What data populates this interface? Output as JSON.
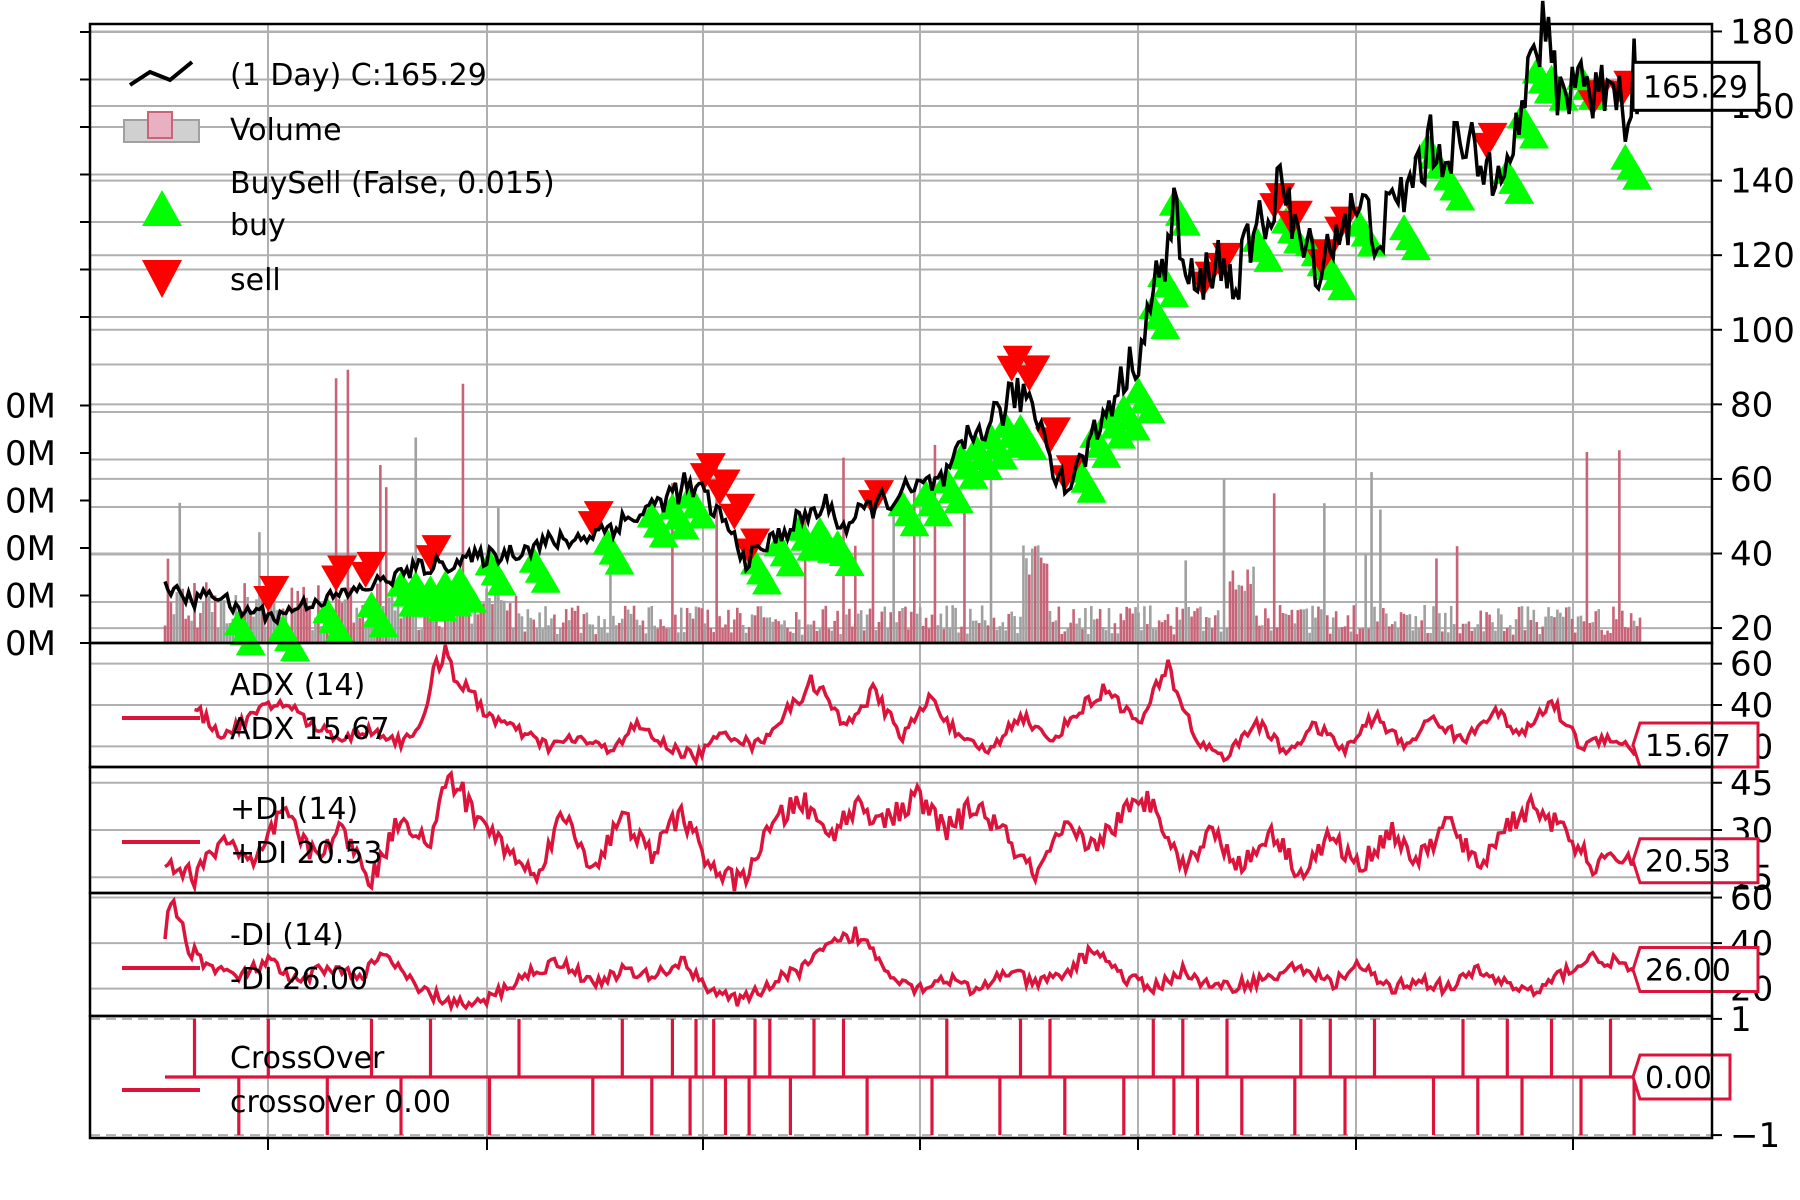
{
  "colors": {
    "price": "#000000",
    "indicator": "#dc143c",
    "buy": "#00ff00",
    "sell": "#ff0000",
    "volume_up": "#a0a0a0",
    "volume_down": "#c86478",
    "grid": "#b0b0b0"
  },
  "chart_data": [
    {
      "type": "line",
      "panel": "price",
      "legend": [
        {
          "label": " (1 Day) C:165.29",
          "icon": "line-icon"
        },
        {
          "label": "Volume",
          "icon": "bar-icon"
        },
        {
          "label": "BuySell (False, 0.015)",
          "icon": ""
        },
        {
          "label": "buy",
          "icon": "triangle-up-icon"
        },
        {
          "label": "sell",
          "icon": "triangle-down-icon"
        }
      ],
      "yticks": [
        "20",
        "40",
        "60",
        "80",
        "100",
        "120",
        "140",
        "160",
        "180"
      ],
      "ylim": [
        16,
        182
      ],
      "volume_ticks": [
        "0M",
        "0M",
        "0M",
        "0M",
        "0M",
        "0M"
      ],
      "last_value_label": "165.29",
      "close_anchors": [
        [
          0,
          32
        ],
        [
          5,
          29
        ],
        [
          10,
          27
        ],
        [
          15,
          30
        ],
        [
          20,
          28
        ],
        [
          25,
          24
        ],
        [
          30,
          25
        ],
        [
          38,
          23
        ],
        [
          45,
          26
        ],
        [
          55,
          28
        ],
        [
          65,
          30
        ],
        [
          75,
          33
        ],
        [
          85,
          36
        ],
        [
          100,
          38
        ],
        [
          115,
          40
        ],
        [
          130,
          43
        ],
        [
          140,
          44
        ],
        [
          150,
          47
        ],
        [
          160,
          50
        ],
        [
          170,
          55
        ],
        [
          176,
          58
        ],
        [
          182,
          56
        ],
        [
          190,
          48
        ],
        [
          197,
          38
        ],
        [
          205,
          43
        ],
        [
          215,
          49
        ],
        [
          225,
          53
        ],
        [
          230,
          47
        ],
        [
          240,
          53
        ],
        [
          250,
          56
        ],
        [
          258,
          58
        ],
        [
          265,
          60
        ],
        [
          272,
          70
        ],
        [
          280,
          76
        ],
        [
          288,
          82
        ],
        [
          292,
          83
        ],
        [
          297,
          75
        ],
        [
          302,
          62
        ],
        [
          306,
          58
        ],
        [
          312,
          67
        ],
        [
          320,
          80
        ],
        [
          330,
          94
        ],
        [
          336,
          112
        ],
        [
          340,
          122
        ],
        [
          342,
          135
        ],
        [
          345,
          116
        ],
        [
          350,
          110
        ],
        [
          356,
          120
        ],
        [
          362,
          112
        ],
        [
          370,
          126
        ],
        [
          375,
          133
        ],
        [
          378,
          143
        ],
        [
          382,
          127
        ],
        [
          387,
          121
        ],
        [
          392,
          118
        ],
        [
          398,
          128
        ],
        [
          405,
          132
        ],
        [
          412,
          126
        ],
        [
          420,
          137
        ],
        [
          428,
          148
        ],
        [
          436,
          150
        ],
        [
          443,
          146
        ],
        [
          448,
          142
        ],
        [
          455,
          152
        ],
        [
          460,
          155
        ],
        [
          465,
          180
        ],
        [
          470,
          172
        ],
        [
          474,
          162
        ],
        [
          478,
          170
        ],
        [
          482,
          167
        ],
        [
          486,
          160
        ],
        [
          489,
          172
        ],
        [
          492,
          165
        ],
        [
          495,
          158
        ],
        [
          498,
          170
        ],
        [
          500,
          165
        ]
      ],
      "buy_indices": [
        25,
        40,
        55,
        70,
        80,
        85,
        90,
        95,
        100,
        110,
        125,
        150,
        165,
        172,
        178,
        200,
        208,
        215,
        222,
        228,
        250,
        258,
        265,
        270,
        275,
        280,
        285,
        290,
        310,
        315,
        320,
        325,
        330,
        335,
        338,
        342,
        370,
        380,
        388,
        395,
        405,
        420,
        428,
        435,
        455,
        460,
        465,
        470,
        480,
        495
      ],
      "sell_indices": [
        35,
        58,
        68,
        90,
        145,
        183,
        188,
        193,
        198,
        240,
        287,
        293,
        300,
        305,
        352,
        358,
        376,
        382,
        392,
        398,
        448,
        484,
        494
      ]
    },
    {
      "type": "line",
      "panel": "adx",
      "legend": [
        {
          "label": "ADX (14)"
        },
        {
          "label": "ADX 15.67"
        }
      ],
      "yticks": [
        "20",
        "40",
        "60"
      ],
      "ylim": [
        10,
        70
      ],
      "last_value_label": "15.67",
      "anchors": [
        [
          0,
          45
        ],
        [
          10,
          38
        ],
        [
          20,
          25
        ],
        [
          30,
          35
        ],
        [
          40,
          42
        ],
        [
          50,
          30
        ],
        [
          60,
          24
        ],
        [
          70,
          28
        ],
        [
          80,
          22
        ],
        [
          88,
          33
        ],
        [
          92,
          60
        ],
        [
          95,
          67
        ],
        [
          100,
          50
        ],
        [
          110,
          35
        ],
        [
          120,
          27
        ],
        [
          130,
          20
        ],
        [
          140,
          24
        ],
        [
          150,
          18
        ],
        [
          160,
          30
        ],
        [
          170,
          20
        ],
        [
          180,
          15
        ],
        [
          190,
          27
        ],
        [
          200,
          20
        ],
        [
          210,
          35
        ],
        [
          220,
          52
        ],
        [
          230,
          30
        ],
        [
          240,
          46
        ],
        [
          250,
          25
        ],
        [
          260,
          44
        ],
        [
          270,
          22
        ],
        [
          280,
          18
        ],
        [
          290,
          36
        ],
        [
          300,
          22
        ],
        [
          310,
          38
        ],
        [
          320,
          48
        ],
        [
          330,
          30
        ],
        [
          340,
          58
        ],
        [
          350,
          22
        ],
        [
          360,
          15
        ],
        [
          370,
          32
        ],
        [
          380,
          17
        ],
        [
          390,
          30
        ],
        [
          400,
          18
        ],
        [
          410,
          35
        ],
        [
          420,
          20
        ],
        [
          430,
          34
        ],
        [
          440,
          22
        ],
        [
          450,
          38
        ],
        [
          460,
          25
        ],
        [
          470,
          42
        ],
        [
          480,
          20
        ],
        [
          490,
          25
        ],
        [
          500,
          16
        ]
      ]
    },
    {
      "type": "line",
      "panel": "plus_di",
      "legend": [
        {
          "label": "+DI (14)"
        },
        {
          "label": "+DI 20.53"
        }
      ],
      "yticks": [
        "15",
        "30",
        "45"
      ],
      "ylim": [
        10,
        50
      ],
      "last_value_label": "20.53",
      "anchors": [
        [
          0,
          20
        ],
        [
          10,
          15
        ],
        [
          20,
          28
        ],
        [
          30,
          18
        ],
        [
          40,
          36
        ],
        [
          50,
          22
        ],
        [
          60,
          30
        ],
        [
          70,
          14
        ],
        [
          80,
          35
        ],
        [
          90,
          25
        ],
        [
          96,
          48
        ],
        [
          105,
          35
        ],
        [
          115,
          25
        ],
        [
          125,
          15
        ],
        [
          135,
          35
        ],
        [
          145,
          18
        ],
        [
          155,
          34
        ],
        [
          165,
          22
        ],
        [
          175,
          36
        ],
        [
          185,
          18
        ],
        [
          195,
          13
        ],
        [
          205,
          30
        ],
        [
          215,
          40
        ],
        [
          225,
          28
        ],
        [
          235,
          38
        ],
        [
          245,
          33
        ],
        [
          255,
          40
        ],
        [
          265,
          30
        ],
        [
          275,
          38
        ],
        [
          285,
          28
        ],
        [
          295,
          15
        ],
        [
          305,
          30
        ],
        [
          315,
          25
        ],
        [
          325,
          35
        ],
        [
          335,
          40
        ],
        [
          345,
          18
        ],
        [
          355,
          30
        ],
        [
          365,
          18
        ],
        [
          375,
          30
        ],
        [
          385,
          16
        ],
        [
          395,
          28
        ],
        [
          405,
          18
        ],
        [
          415,
          30
        ],
        [
          425,
          20
        ],
        [
          435,
          33
        ],
        [
          445,
          18
        ],
        [
          455,
          32
        ],
        [
          465,
          38
        ],
        [
          475,
          28
        ],
        [
          485,
          18
        ],
        [
          495,
          22
        ],
        [
          500,
          20
        ]
      ]
    },
    {
      "type": "line",
      "panel": "minus_di",
      "legend": [
        {
          "label": "-DI (14)"
        },
        {
          "label": "-DI 26.00"
        }
      ],
      "yticks": [
        "20",
        "40",
        "60"
      ],
      "ylim": [
        8,
        62
      ],
      "last_value_label": "26.00",
      "anchors": [
        [
          0,
          45
        ],
        [
          3,
          58
        ],
        [
          8,
          38
        ],
        [
          15,
          30
        ],
        [
          25,
          25
        ],
        [
          35,
          32
        ],
        [
          45,
          22
        ],
        [
          55,
          30
        ],
        [
          65,
          25
        ],
        [
          75,
          35
        ],
        [
          85,
          20
        ],
        [
          95,
          15
        ],
        [
          105,
          12
        ],
        [
          115,
          20
        ],
        [
          125,
          28
        ],
        [
          135,
          32
        ],
        [
          145,
          22
        ],
        [
          155,
          28
        ],
        [
          165,
          25
        ],
        [
          175,
          32
        ],
        [
          185,
          20
        ],
        [
          195,
          14
        ],
        [
          205,
          22
        ],
        [
          215,
          28
        ],
        [
          225,
          38
        ],
        [
          235,
          44
        ],
        [
          245,
          28
        ],
        [
          255,
          20
        ],
        [
          265,
          25
        ],
        [
          275,
          18
        ],
        [
          285,
          28
        ],
        [
          295,
          22
        ],
        [
          305,
          26
        ],
        [
          315,
          38
        ],
        [
          325,
          25
        ],
        [
          335,
          20
        ],
        [
          345,
          28
        ],
        [
          355,
          20
        ],
        [
          365,
          22
        ],
        [
          375,
          25
        ],
        [
          385,
          30
        ],
        [
          395,
          22
        ],
        [
          405,
          30
        ],
        [
          415,
          20
        ],
        [
          425,
          24
        ],
        [
          435,
          20
        ],
        [
          445,
          28
        ],
        [
          455,
          22
        ],
        [
          465,
          18
        ],
        [
          475,
          28
        ],
        [
          485,
          34
        ],
        [
          495,
          30
        ],
        [
          500,
          26
        ]
      ]
    },
    {
      "type": "line",
      "panel": "crossover",
      "legend": [
        {
          "label": "CrossOver"
        },
        {
          "label": "crossover 0.00"
        }
      ],
      "yticks": [
        "1",
        "−1"
      ],
      "ylim": [
        -1.05,
        1.05
      ],
      "last_value_label": "0.00",
      "up_indices": [
        10,
        35,
        70,
        90,
        120,
        155,
        172,
        180,
        186,
        200,
        205,
        220,
        230,
        265,
        290,
        300,
        335,
        345,
        360,
        385,
        395,
        410,
        440,
        455,
        470,
        490
      ],
      "down_indices": [
        25,
        55,
        80,
        110,
        145,
        165,
        178,
        190,
        198,
        212,
        238,
        260,
        283,
        305,
        325,
        342,
        350,
        365,
        383,
        400,
        430,
        445,
        460,
        480,
        498
      ]
    }
  ]
}
